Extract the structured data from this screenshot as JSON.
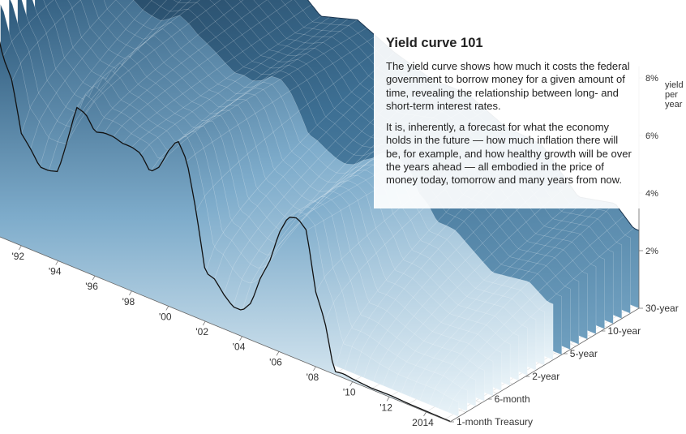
{
  "chart_data": {
    "type": "area",
    "title": "Yield curve 101",
    "paragraphs": [
      "The yield curve shows how much it costs the federal government to borrow money for a given amount of time, revealing the relationship between long- and short-term interest rates.",
      "It is, inherently, a forecast for what the economy holds in the future — how much inflation there will be, for example, and how healthy growth will be over the years ahead — all embodied in the price of money today, tomorrow and many years from now."
    ],
    "time_ticks": [
      "'92",
      "'94",
      "'96",
      "'98",
      "'00",
      "'02",
      "'04",
      "'06",
      "'08",
      "'10",
      "'12",
      "2014"
    ],
    "maturity_ticks": [
      "1-month Treasury",
      "6-month",
      "2-year",
      "5-year",
      "10-year",
      "30-year"
    ],
    "yield_ticks": [
      "2%",
      "4%",
      "6%",
      "8%"
    ],
    "yield_unit_lines": [
      "yield",
      "per",
      "year"
    ],
    "ylim": [
      0,
      8.5
    ],
    "grid": true,
    "series": [
      {
        "name": "1-month Treasury",
        "x": [
          1990.0,
          1990.5,
          1991.0,
          1991.5,
          1992.0,
          1992.5,
          1993.0,
          1993.5,
          1994.0,
          1994.5,
          1995.0,
          1995.5,
          1996.0,
          1996.5,
          1997.0,
          1997.5,
          1998.0,
          1998.5,
          1999.0,
          1999.5,
          2000.0,
          2000.5,
          2001.0,
          2001.5,
          2002.0,
          2002.5,
          2003.0,
          2003.5,
          2004.0,
          2004.5,
          2005.0,
          2005.5,
          2006.0,
          2006.5,
          2007.0,
          2007.5,
          2008.0,
          2008.5,
          2009.0,
          2009.5,
          2010.0,
          2011.0,
          2012.0,
          2013.0,
          2014.0,
          2015.0
        ],
        "values": [
          7.8,
          7.6,
          6.3,
          5.6,
          3.9,
          3.5,
          3.0,
          3.0,
          3.1,
          4.3,
          5.6,
          5.5,
          5.0,
          5.1,
          5.1,
          5.0,
          5.0,
          4.9,
          4.4,
          4.7,
          5.4,
          5.9,
          5.3,
          3.7,
          1.7,
          1.6,
          1.2,
          0.9,
          0.9,
          1.3,
          2.3,
          3.0,
          4.1,
          4.8,
          4.9,
          4.6,
          2.6,
          1.7,
          0.1,
          0.15,
          0.1,
          0.05,
          0.07,
          0.04,
          0.03,
          0.02
        ]
      },
      {
        "name": "30-year",
        "x": [
          1990,
          1992,
          1994,
          1996,
          1998,
          2000,
          2002,
          2004,
          2006,
          2008,
          2010,
          2012,
          2014,
          2015
        ],
        "values": [
          8.6,
          7.8,
          7.4,
          6.7,
          5.6,
          6.0,
          5.4,
          5.0,
          5.0,
          4.4,
          4.3,
          3.0,
          3.3,
          2.7
        ]
      }
    ]
  }
}
